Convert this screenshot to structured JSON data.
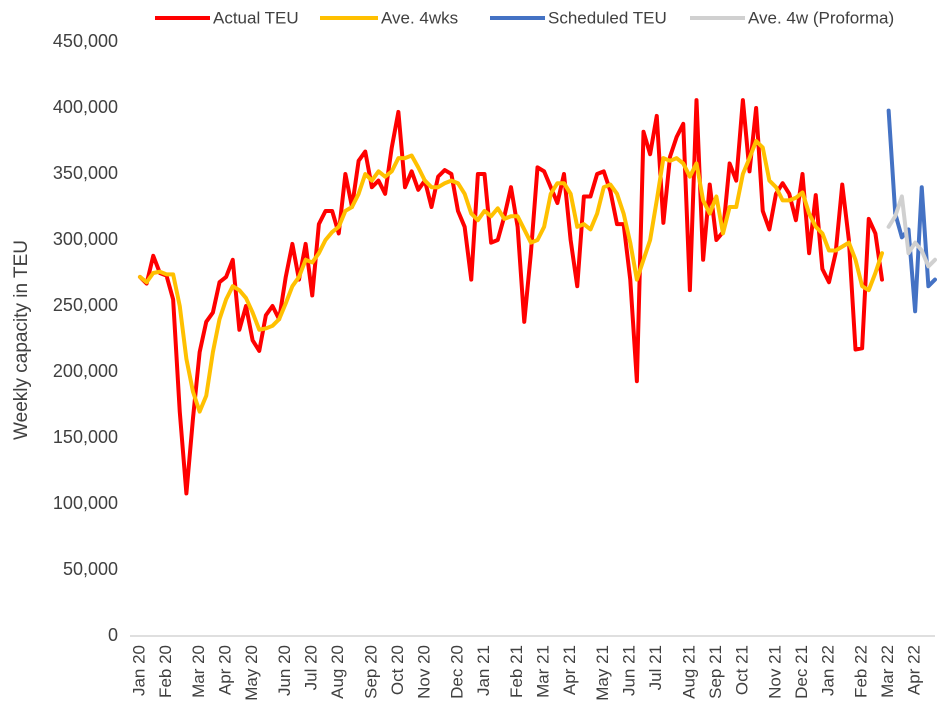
{
  "chart_data": {
    "type": "line",
    "y_label": "Weekly capacity in TEU",
    "categories": [
      "Jan 20",
      null,
      null,
      null,
      "Feb 20",
      null,
      null,
      null,
      null,
      "Mar 20",
      null,
      null,
      null,
      "Apr 20",
      null,
      null,
      null,
      "May 20",
      null,
      null,
      null,
      null,
      "Jun 20",
      null,
      null,
      null,
      "Jul 20",
      null,
      null,
      null,
      "Aug 20",
      null,
      null,
      null,
      null,
      "Sep 20",
      null,
      null,
      null,
      "Oct 20",
      null,
      null,
      null,
      "Nov 20",
      null,
      null,
      null,
      null,
      "Dec 20",
      null,
      null,
      null,
      "Jan 21",
      null,
      null,
      null,
      null,
      "Feb 21",
      null,
      null,
      null,
      "Mar 21",
      null,
      null,
      null,
      "Apr 21",
      null,
      null,
      null,
      null,
      "May 21",
      null,
      null,
      null,
      "Jun 21",
      null,
      null,
      null,
      "Jul 21",
      null,
      null,
      null,
      null,
      "Aug 21",
      null,
      null,
      null,
      "Sep 21",
      null,
      null,
      null,
      "Oct 21",
      null,
      null,
      null,
      null,
      "Nov 21",
      null,
      null,
      null,
      "Dec 21",
      null,
      null,
      null,
      "Jan 22",
      null,
      null,
      null,
      null,
      "Feb 22",
      null,
      null,
      null,
      "Mar 22",
      null,
      null,
      null,
      "Apr 22",
      null,
      null,
      null
    ],
    "series": [
      {
        "name": "Actual TEU",
        "color": "#ff0000",
        "values": [
          272000,
          267000,
          288000,
          275000,
          273000,
          255000,
          170000,
          108000,
          165000,
          215000,
          238000,
          245000,
          268000,
          272000,
          285000,
          232000,
          250000,
          224000,
          216000,
          243000,
          250000,
          240000,
          272000,
          297000,
          270000,
          297000,
          258000,
          312000,
          322000,
          322000,
          305000,
          350000,
          325000,
          360000,
          367000,
          340000,
          345000,
          335000,
          370000,
          397000,
          340000,
          352000,
          338000,
          345000,
          325000,
          348000,
          353000,
          350000,
          322000,
          310000,
          270000,
          350000,
          350000,
          298000,
          300000,
          318000,
          340000,
          310000,
          238000,
          290000,
          355000,
          352000,
          340000,
          328000,
          350000,
          300000,
          265000,
          333000,
          333000,
          350000,
          352000,
          337000,
          312000,
          312000,
          270000,
          193000,
          382000,
          365000,
          394000,
          313000,
          363000,
          378000,
          388000,
          262000,
          406000,
          285000,
          342000,
          300000,
          306000,
          358000,
          345000,
          406000,
          352000,
          400000,
          322000,
          308000,
          335000,
          343000,
          335000,
          315000,
          350000,
          290000,
          334000,
          278000,
          268000,
          290000,
          342000,
          300000,
          217000,
          218000,
          316000,
          305000,
          270000,
          null,
          null,
          null,
          null,
          null,
          null,
          null,
          null
        ]
      },
      {
        "name": "Ave. 4wks",
        "color": "#ffc000",
        "values": [
          272000,
          268000,
          275000,
          276000,
          274000,
          274000,
          250000,
          210000,
          185000,
          170000,
          182000,
          215000,
          240000,
          255000,
          265000,
          262000,
          256000,
          245000,
          232000,
          233000,
          235000,
          240000,
          252000,
          265000,
          272000,
          285000,
          283000,
          290000,
          300000,
          306000,
          310000,
          322000,
          325000,
          335000,
          350000,
          345000,
          352000,
          348000,
          352000,
          362000,
          362000,
          364000,
          355000,
          345000,
          340000,
          340000,
          343000,
          345000,
          343000,
          335000,
          320000,
          315000,
          322000,
          318000,
          324000,
          316000,
          318000,
          318000,
          308000,
          298000,
          300000,
          310000,
          335000,
          343000,
          343000,
          335000,
          310000,
          312000,
          308000,
          320000,
          340000,
          342000,
          335000,
          320000,
          298000,
          270000,
          285000,
          300000,
          330000,
          362000,
          360000,
          362000,
          358000,
          348000,
          358000,
          330000,
          320000,
          333000,
          305000,
          325000,
          325000,
          350000,
          362000,
          375000,
          370000,
          345000,
          340000,
          330000,
          330000,
          332000,
          336000,
          320000,
          310000,
          305000,
          292000,
          292000,
          295000,
          298000,
          285000,
          265000,
          262000,
          275000,
          290000,
          null,
          null,
          null,
          null,
          null,
          null,
          null,
          null
        ]
      },
      {
        "name": "Scheduled TEU",
        "color": "#4472c4",
        "values": [
          null,
          null,
          null,
          null,
          null,
          null,
          null,
          null,
          null,
          null,
          null,
          null,
          null,
          null,
          null,
          null,
          null,
          null,
          null,
          null,
          null,
          null,
          null,
          null,
          null,
          null,
          null,
          null,
          null,
          null,
          null,
          null,
          null,
          null,
          null,
          null,
          null,
          null,
          null,
          null,
          null,
          null,
          null,
          null,
          null,
          null,
          null,
          null,
          null,
          null,
          null,
          null,
          null,
          null,
          null,
          null,
          null,
          null,
          null,
          null,
          null,
          null,
          null,
          null,
          null,
          null,
          null,
          null,
          null,
          null,
          null,
          null,
          null,
          null,
          null,
          null,
          null,
          null,
          null,
          null,
          null,
          null,
          null,
          null,
          null,
          null,
          null,
          null,
          null,
          null,
          null,
          null,
          null,
          null,
          null,
          null,
          null,
          null,
          null,
          null,
          null,
          null,
          null,
          null,
          null,
          null,
          null,
          null,
          null,
          null,
          null,
          null,
          null,
          398000,
          320000,
          302000,
          308000,
          246000,
          340000,
          265000,
          270000
        ]
      },
      {
        "name": "Ave. 4w (Proforma)",
        "color": "#d0d0d0",
        "values": [
          null,
          null,
          null,
          null,
          null,
          null,
          null,
          null,
          null,
          null,
          null,
          null,
          null,
          null,
          null,
          null,
          null,
          null,
          null,
          null,
          null,
          null,
          null,
          null,
          null,
          null,
          null,
          null,
          null,
          null,
          null,
          null,
          null,
          null,
          null,
          null,
          null,
          null,
          null,
          null,
          null,
          null,
          null,
          null,
          null,
          null,
          null,
          null,
          null,
          null,
          null,
          null,
          null,
          null,
          null,
          null,
          null,
          null,
          null,
          null,
          null,
          null,
          null,
          null,
          null,
          null,
          null,
          null,
          null,
          null,
          null,
          null,
          null,
          null,
          null,
          null,
          null,
          null,
          null,
          null,
          null,
          null,
          null,
          null,
          null,
          null,
          null,
          null,
          null,
          null,
          null,
          null,
          null,
          null,
          null,
          null,
          null,
          null,
          null,
          null,
          null,
          null,
          null,
          null,
          null,
          null,
          null,
          null,
          null,
          null,
          null,
          null,
          null,
          310000,
          318000,
          333000,
          290000,
          298000,
          292000,
          280000,
          285000
        ]
      }
    ],
    "ylim": [
      0,
      450000
    ],
    "yticks": [
      0,
      {
        "value": 50000,
        "label": "50,000"
      },
      {
        "value": 100000,
        "label": "100,000"
      },
      {
        "value": 150000,
        "label": "150,000"
      },
      {
        "value": 200000,
        "label": "200,000"
      },
      {
        "value": 250000,
        "label": "250,000"
      },
      {
        "value": 300000,
        "label": "300,000"
      },
      {
        "value": 350000,
        "label": "350,000"
      },
      {
        "value": 400000,
        "label": "400,000"
      },
      {
        "value": 450000,
        "label": "450,000"
      }
    ],
    "grid": false,
    "legend": "top"
  }
}
